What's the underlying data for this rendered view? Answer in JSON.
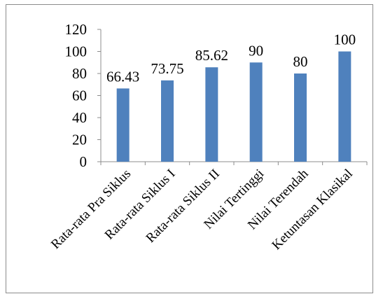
{
  "chart_data": {
    "type": "bar",
    "title": "",
    "xlabel": "",
    "ylabel": "",
    "categories": [
      "Rata-rata Pra Siklus",
      "Rata-rata Siklus I",
      "Rata-rata Siklus II",
      "Nilai Tertinggi",
      "Nilai Terendah",
      "Ketuntasan Klasikal"
    ],
    "values": [
      66.43,
      73.75,
      85.62,
      90,
      80,
      100
    ],
    "data_labels": [
      "66.43",
      "73.75",
      "85.62",
      "90",
      "80",
      "100"
    ],
    "ylim": [
      0,
      120
    ],
    "yticks": [
      0,
      20,
      40,
      60,
      80,
      100,
      120
    ],
    "grid": false,
    "legend": "none",
    "bar_color": "#4f81bd"
  }
}
